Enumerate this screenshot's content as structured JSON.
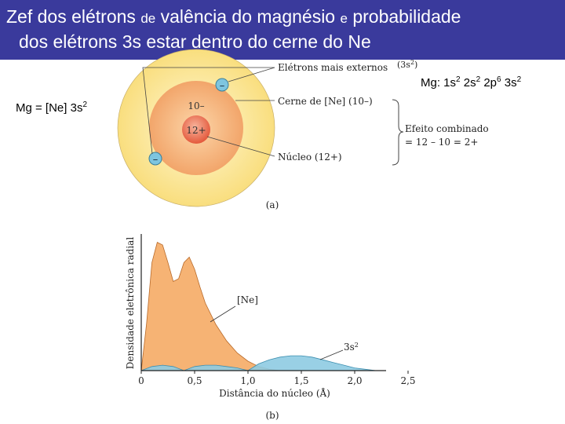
{
  "title": {
    "line1_a": "Zef dos elétrons ",
    "line1_b": "de",
    "line1_c": " valência do magnésio ",
    "line1_d": "e",
    "line1_e": " probabilidade",
    "line2": "dos elétrons 3s estar dentro do cerne do Ne"
  },
  "config_right": {
    "base": "Mg: 1s",
    "s1": "2",
    "b2": " 2s",
    "s2": "2",
    "b3": " 2p",
    "s3": "6",
    "b4": " 3s",
    "s4": "2"
  },
  "config_left": {
    "base": "Mg = [Ne] 3s",
    "sup": "2"
  },
  "diagram_a": {
    "label_outer": "Elétrons mais externos",
    "label_outer_sup": "(3s",
    "label_outer_sup2": "2",
    "label_outer_sup3": ")",
    "label_core": "Cerne de [Ne] (10–)",
    "label_nucleus": "Núcleo (12+)",
    "core_charge": "10–",
    "nucleus_charge": "12+",
    "electron_sign": "–",
    "effect_line1": "Efeito combinado",
    "effect_line2": "= 12 – 10 = 2+",
    "caption": "(a)",
    "colors": {
      "outer": "#fbe79a",
      "core": "#f6b67f",
      "nucleus": "#e86a4e",
      "electron": "#7ec5df"
    }
  },
  "chart_data": {
    "type": "area",
    "caption": "(b)",
    "ylabel": "Densidade eletrônica radial",
    "xlabel": "Distância do núcleo (Å)",
    "xlim": [
      0,
      2.5
    ],
    "x_ticks": [
      "0",
      "0,5",
      "1,0",
      "1,5",
      "2,0",
      "2,5"
    ],
    "series": [
      {
        "name": "[Ne]",
        "color": "#f4a65c",
        "points": [
          [
            0,
            0
          ],
          [
            0.05,
            0.35
          ],
          [
            0.1,
            0.8
          ],
          [
            0.15,
            0.95
          ],
          [
            0.2,
            0.93
          ],
          [
            0.25,
            0.8
          ],
          [
            0.3,
            0.66
          ],
          [
            0.35,
            0.68
          ],
          [
            0.4,
            0.8
          ],
          [
            0.45,
            0.84
          ],
          [
            0.5,
            0.75
          ],
          [
            0.55,
            0.62
          ],
          [
            0.6,
            0.5
          ],
          [
            0.7,
            0.34
          ],
          [
            0.8,
            0.22
          ],
          [
            0.9,
            0.13
          ],
          [
            1.0,
            0.07
          ],
          [
            1.1,
            0.03
          ],
          [
            1.2,
            0.01
          ],
          [
            1.3,
            0
          ]
        ]
      },
      {
        "name": "3s2",
        "color": "#8ecbe2",
        "points": [
          [
            0,
            0
          ],
          [
            0.1,
            0.03
          ],
          [
            0.2,
            0.04
          ],
          [
            0.3,
            0.03
          ],
          [
            0.4,
            0.0
          ],
          [
            0.5,
            0.03
          ],
          [
            0.6,
            0.04
          ],
          [
            0.7,
            0.04
          ],
          [
            0.8,
            0.03
          ],
          [
            0.9,
            0.02
          ],
          [
            1.0,
            0.0
          ],
          [
            1.1,
            0.05
          ],
          [
            1.2,
            0.08
          ],
          [
            1.3,
            0.1
          ],
          [
            1.4,
            0.11
          ],
          [
            1.5,
            0.11
          ],
          [
            1.6,
            0.1
          ],
          [
            1.7,
            0.08
          ],
          [
            1.8,
            0.06
          ],
          [
            1.9,
            0.04
          ],
          [
            2.0,
            0.02
          ],
          [
            2.1,
            0.01
          ],
          [
            2.2,
            0
          ]
        ]
      }
    ],
    "annotations": {
      "ne_label": "[Ne]",
      "s_label": "3s",
      "s_label_sup": "2"
    }
  }
}
